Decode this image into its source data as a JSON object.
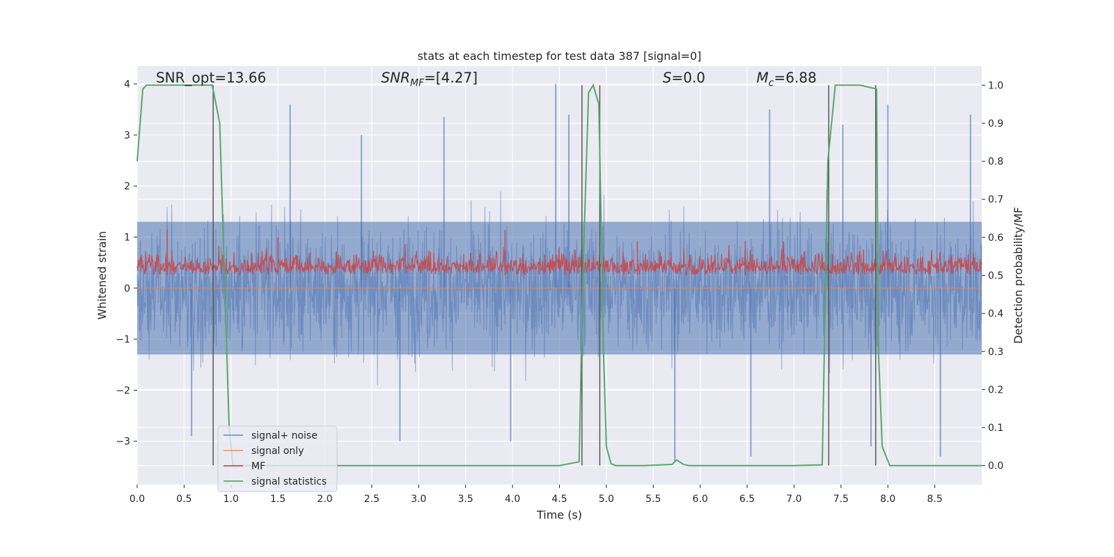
{
  "chart_data": {
    "type": "line",
    "title": "stats at each timestep for test data 387 [signal=0]",
    "xlabel": "Time (s)",
    "ylabel_left": "Whitened strain",
    "ylabel_right": "Detection probability/MF",
    "xlim": [
      0.0,
      9.0
    ],
    "ylim_left": [
      -3.85,
      4.35
    ],
    "ylim_right": [
      -0.05,
      1.05
    ],
    "x_ticks": [
      0.0,
      0.5,
      1.0,
      1.5,
      2.0,
      2.5,
      3.0,
      3.5,
      4.0,
      4.5,
      5.0,
      5.5,
      6.0,
      6.5,
      7.0,
      7.5,
      8.0,
      8.5
    ],
    "x_tick_labels": [
      "0.0",
      "0.5",
      "1.0",
      "1.5",
      "2.0",
      "2.5",
      "3.0",
      "3.5",
      "4.0",
      "4.5",
      "5.0",
      "5.5",
      "6.0",
      "6.5",
      "7.0",
      "7.5",
      "8.0",
      "8.5"
    ],
    "y_ticks_left": [
      -3,
      -2,
      -1,
      0,
      1,
      2,
      3,
      4
    ],
    "y_tick_labels_left": [
      "−3",
      "−2",
      "−1",
      "0",
      "1",
      "2",
      "3",
      "4"
    ],
    "y_ticks_right": [
      0.0,
      0.1,
      0.2,
      0.3,
      0.4,
      0.5,
      0.6,
      0.7,
      0.8,
      0.9,
      1.0
    ],
    "y_tick_labels_right": [
      "0.0",
      "0.1",
      "0.2",
      "0.3",
      "0.4",
      "0.5",
      "0.6",
      "0.7",
      "0.8",
      "0.9",
      "1.0"
    ],
    "grid": true,
    "legend_position": "lower-left",
    "annotations": [
      {
        "text": "SNR_opt=13.66",
        "x": 0.2
      },
      {
        "text": "SNR_MF=[4.27]",
        "x": 2.6
      },
      {
        "text": "S=0.0",
        "x": 5.6
      },
      {
        "text": "M_c=6.88",
        "x": 6.6
      }
    ],
    "series": [
      {
        "name": "signal+ noise",
        "axis": "left",
        "color": "#4c72b0",
        "description": "dense whitened noise trace",
        "envelope_typical": [
          -1.3,
          1.3
        ],
        "envelope_extreme": [
          -3.45,
          4.0
        ],
        "peaks": [
          {
            "x": 1.63,
            "y": 3.6
          },
          {
            "x": 3.27,
            "y": 3.35
          },
          {
            "x": 4.46,
            "y": 4.0
          },
          {
            "x": 4.6,
            "y": 3.4
          },
          {
            "x": 6.74,
            "y": 3.5
          },
          {
            "x": 8.0,
            "y": 3.6
          },
          {
            "x": 8.88,
            "y": 3.4
          },
          {
            "x": 2.39,
            "y": 3.0
          },
          {
            "x": 7.52,
            "y": 3.2
          }
        ],
        "troughs": [
          {
            "x": 3.98,
            "y": -3.0
          },
          {
            "x": 5.73,
            "y": -3.4
          },
          {
            "x": 6.54,
            "y": -3.3
          },
          {
            "x": 8.56,
            "y": -3.3
          },
          {
            "x": 7.82,
            "y": -3.1
          },
          {
            "x": 2.8,
            "y": -3.0
          },
          {
            "x": 0.58,
            "y": -2.9
          }
        ]
      },
      {
        "name": "signal only",
        "axis": "left",
        "color": "#dd8452",
        "x": [
          0.0,
          9.0
        ],
        "y": [
          0.0,
          0.0
        ]
      },
      {
        "name": "MF",
        "axis": "right",
        "color": "#c44e52",
        "description": "matched-filter output, fluctuating",
        "baseline": 0.5,
        "band": [
          0.48,
          0.58
        ],
        "peaks": [
          {
            "x": 0.32,
            "y": 0.62
          },
          {
            "x": 1.5,
            "y": 0.6
          },
          {
            "x": 3.92,
            "y": 0.62
          },
          {
            "x": 5.33,
            "y": 0.59
          },
          {
            "x": 6.48,
            "y": 0.59
          }
        ]
      },
      {
        "name": "signal statistics",
        "axis": "right",
        "color": "#55a868",
        "x": [
          0.0,
          0.06,
          0.1,
          0.25,
          0.5,
          0.8,
          0.88,
          0.93,
          0.98,
          1.02,
          1.1,
          2.0,
          3.0,
          4.0,
          4.5,
          4.71,
          4.75,
          4.81,
          4.86,
          4.92,
          4.97,
          5.0,
          5.05,
          5.1,
          5.2,
          5.4,
          5.7,
          5.75,
          5.82,
          5.88,
          6.0,
          7.0,
          7.3,
          7.36,
          7.44,
          7.7,
          7.88,
          7.9,
          7.94,
          8.02,
          8.5,
          9.0
        ],
        "y": [
          0.8,
          0.99,
          1.0,
          1.0,
          1.0,
          1.0,
          0.9,
          0.5,
          0.1,
          0.0,
          0.0,
          0.0,
          0.0,
          0.0,
          0.0,
          0.01,
          0.5,
          0.98,
          1.0,
          0.95,
          0.3,
          0.05,
          0.005,
          0.0,
          0.0,
          0.0,
          0.003,
          0.015,
          0.003,
          0.0,
          0.0,
          0.0,
          0.002,
          0.8,
          1.0,
          1.0,
          0.99,
          0.3,
          0.05,
          0.0,
          0.0,
          0.0
        ]
      }
    ],
    "vertical_lines": [
      0.81,
      4.74,
      4.93,
      7.37,
      7.87
    ],
    "vertical_line_color": "#555555",
    "background": "#eaeaf2",
    "grid_color": "#ffffff"
  }
}
